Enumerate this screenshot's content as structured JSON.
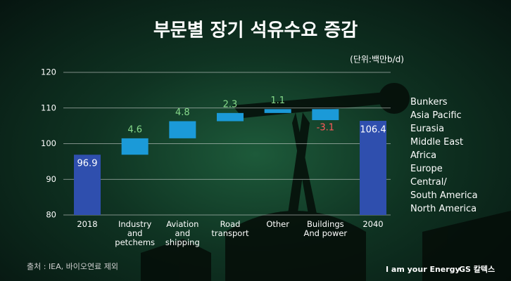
{
  "chart_data": {
    "type": "waterfall",
    "title": "부문별 장기 석유수요 증감",
    "unit_label": "(단위:백만b/d)",
    "categories": [
      "2018",
      "Industry and petchems",
      "Aviation and shipping",
      "Road transport",
      "Other",
      "Buildings And power",
      "2040"
    ],
    "values": [
      96.9,
      4.6,
      4.8,
      2.3,
      1.1,
      -3.1,
      106.4
    ],
    "colors": {
      "total": "#2f4fae",
      "increase": "#1b9ad8",
      "decrease": "#1b9ad8"
    },
    "label_colors": {
      "total": "#ffffff",
      "increase": "#86d98a",
      "decrease": "#ff5b5b"
    },
    "ylim": [
      80,
      120
    ],
    "yticks": [
      80,
      90,
      100,
      110,
      120
    ],
    "grid": true,
    "side_labels": [
      "Bunkers",
      "Asia Pacific",
      "Eurasia",
      "Middle East",
      "Africa",
      "Europe",
      "Central/\nSouth America",
      "North America"
    ],
    "source": "출처 : IEA, 바이오연료 제외",
    "slogan": "I am your Energy",
    "brand": "GS 칼텍스"
  }
}
